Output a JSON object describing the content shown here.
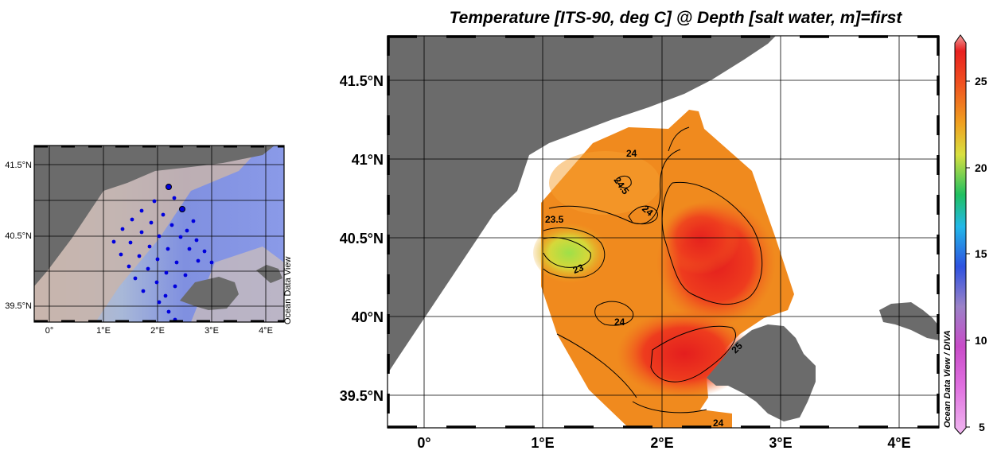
{
  "title": "Temperature [ITS-90, deg C] @ Depth [salt water, m]=first",
  "watermark": "Ocean Data View / DIVA",
  "inset_watermark": "Ocean Data View",
  "main_map": {
    "lon_ticks": [
      "0°",
      "1°E",
      "2°E",
      "3°E",
      "4°E"
    ],
    "lat_ticks": [
      "41.5°N",
      "41°N",
      "40.5°N",
      "40°N",
      "39.5°N"
    ]
  },
  "inset_map": {
    "lon_ticks": [
      "0°",
      "1°E",
      "2°E",
      "3°E",
      "4°E"
    ],
    "lat_ticks": [
      "41.5°N",
      "40.5°N",
      "39.5°N"
    ]
  },
  "contour_labels": [
    "24",
    "24.5",
    "24",
    "23.5",
    "23",
    "24",
    "25",
    "24"
  ],
  "colorbar": {
    "min": 5,
    "max": 27.5,
    "ticks": [
      "25",
      "20",
      "15",
      "10",
      "5"
    ]
  },
  "colors": {
    "land": "#6b6b6b",
    "warm": "#e02020",
    "mid": "#f08020",
    "cool": "#a0d840",
    "station": "#0000dd"
  }
}
